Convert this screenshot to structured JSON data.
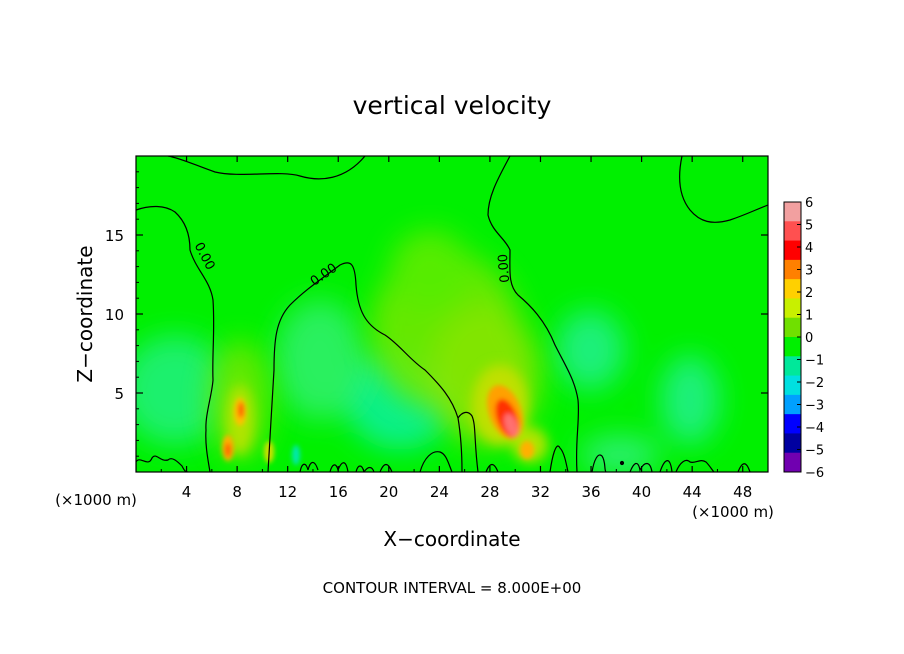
{
  "chart_data": {
    "type": "heatmap",
    "title": "vertical velocity",
    "xlabel": "X−coordinate",
    "ylabel": "Z−coordinate",
    "x_unit_left": "(×1000 m)",
    "x_unit_right": "(×1000 m)",
    "xlim": [
      0,
      50
    ],
    "ylim": [
      0,
      20
    ],
    "xticks": [
      4,
      8,
      12,
      16,
      20,
      24,
      28,
      32,
      36,
      40,
      44,
      48
    ],
    "yticks": [
      5,
      10,
      15
    ],
    "contour_label": "0.00",
    "contour_interval_text": "CONTOUR INTERVAL = 8.000E+00",
    "colorbar": {
      "levels": [
        6,
        5,
        4,
        3,
        2,
        1,
        0,
        -1,
        -2,
        -3,
        -4,
        -5,
        -6
      ],
      "labels": [
        "6",
        "5",
        "4",
        "3",
        "2",
        "1",
        "0",
        "−1",
        "−2",
        "−3",
        "−4",
        "−5",
        "−6"
      ],
      "colors": [
        "#f2a0a0",
        "#ff5050",
        "#ff0000",
        "#ff8000",
        "#ffd000",
        "#c8f000",
        "#70e000",
        "#00f000",
        "#00e89a",
        "#00e0e0",
        "#00a0ff",
        "#0000ff",
        "#0000a0",
        "#7000b0"
      ]
    },
    "features": [
      {
        "name": "updraft core",
        "x": 29.5,
        "z": 3.2,
        "value": 5.0
      },
      {
        "name": "updraft",
        "x": 8.5,
        "z": 3.5,
        "value": 3.0
      },
      {
        "name": "updraft",
        "x": 7.3,
        "z": 1.2,
        "value": 2.5
      },
      {
        "name": "updraft",
        "x": 10.2,
        "z": 1.0,
        "value": 1.5
      },
      {
        "name": "updraft",
        "x": 31.8,
        "z": 1.2,
        "value": 2.5
      }
    ]
  }
}
